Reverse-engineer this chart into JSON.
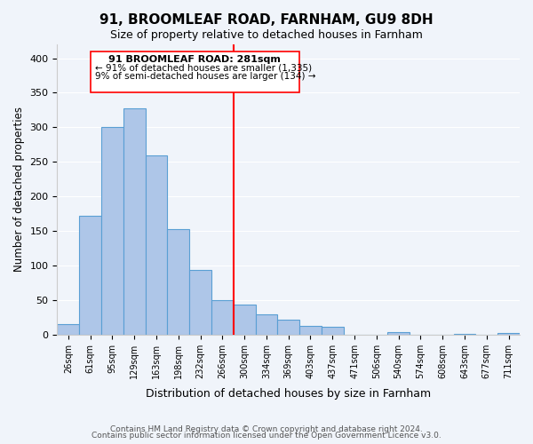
{
  "title": "91, BROOMLEAF ROAD, FARNHAM, GU9 8DH",
  "subtitle": "Size of property relative to detached houses in Farnham",
  "xlabel": "Distribution of detached houses by size in Farnham",
  "ylabel": "Number of detached properties",
  "bar_labels": [
    "26sqm",
    "61sqm",
    "95sqm",
    "129sqm",
    "163sqm",
    "198sqm",
    "232sqm",
    "266sqm",
    "300sqm",
    "334sqm",
    "369sqm",
    "403sqm",
    "437sqm",
    "471sqm",
    "506sqm",
    "540sqm",
    "574sqm",
    "608sqm",
    "643sqm",
    "677sqm",
    "711sqm"
  ],
  "bar_heights": [
    15,
    172,
    300,
    328,
    259,
    153,
    93,
    50,
    43,
    29,
    22,
    12,
    11,
    0,
    0,
    4,
    0,
    0,
    1,
    0,
    2
  ],
  "bar_color": "#aec6e8",
  "bar_edge_color": "#5a9fd4",
  "annotation_title": "91 BROOMLEAF ROAD: 281sqm",
  "annotation_line1": "← 91% of detached houses are smaller (1,335)",
  "annotation_line2": "9% of semi-detached houses are larger (134) →",
  "property_line_x": 7.5,
  "ylim": [
    0,
    420
  ],
  "footer1": "Contains HM Land Registry data © Crown copyright and database right 2024.",
  "footer2": "Contains public sector information licensed under the Open Government Licence v3.0.",
  "bg_color": "#f0f4fa"
}
